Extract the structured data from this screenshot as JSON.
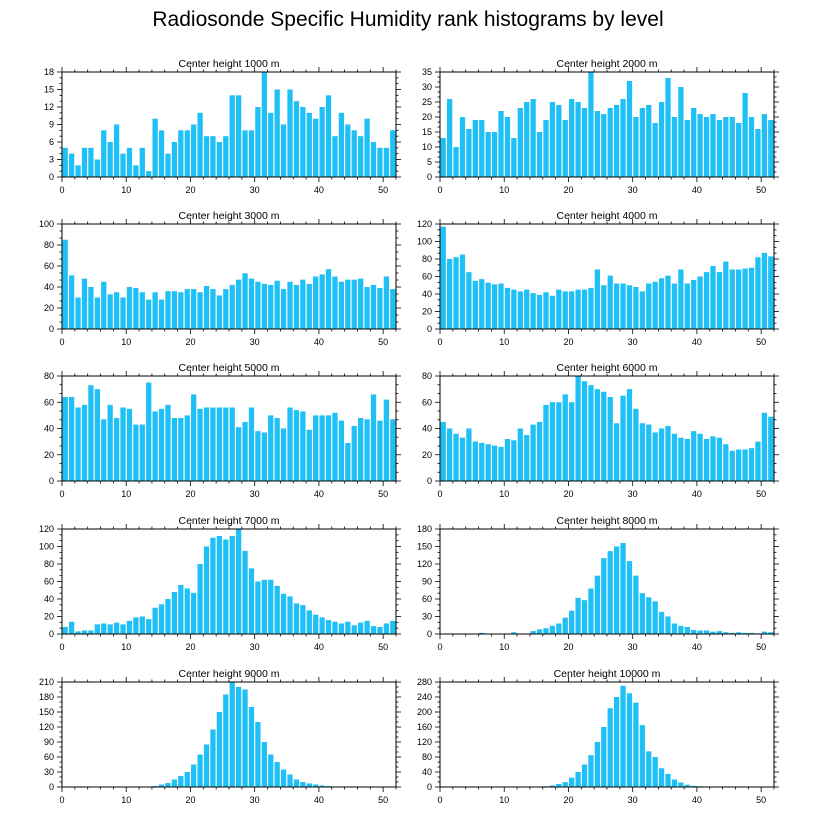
{
  "title": "Radiosonde Specific Humidity rank histograms by level",
  "bar_color": "#1ec0f5",
  "chart_data": [
    {
      "type": "bar",
      "title": "Center height 1000 m",
      "xlim": [
        0,
        52
      ],
      "ylim": [
        0,
        18
      ],
      "xticks": [
        0,
        10,
        20,
        30,
        40,
        50
      ],
      "yticks": [
        0,
        3,
        6,
        9,
        12,
        15,
        18
      ],
      "x": [
        0,
        1,
        2,
        3,
        4,
        5,
        6,
        7,
        8,
        9,
        10,
        11,
        12,
        13,
        14,
        15,
        16,
        17,
        18,
        19,
        20,
        21,
        22,
        23,
        24,
        25,
        26,
        27,
        28,
        29,
        30,
        31,
        32,
        33,
        34,
        35,
        36,
        37,
        38,
        39,
        40,
        41,
        42,
        43,
        44,
        45,
        46,
        47,
        48,
        49,
        50,
        51
      ],
      "values": [
        5,
        4,
        2,
        5,
        5,
        3,
        8,
        6,
        9,
        4,
        5,
        2,
        5,
        1,
        10,
        8,
        4,
        6,
        8,
        8,
        9,
        11,
        7,
        7,
        6,
        7,
        14,
        14,
        8,
        8,
        12,
        18,
        11,
        15,
        9,
        15,
        13,
        12,
        11,
        10,
        12,
        14,
        7,
        11,
        9,
        8,
        7,
        10,
        6,
        5,
        5,
        8
      ]
    },
    {
      "type": "bar",
      "title": "Center height 2000 m",
      "xlim": [
        0,
        52
      ],
      "ylim": [
        0,
        35
      ],
      "xticks": [
        0,
        10,
        20,
        30,
        40,
        50
      ],
      "yticks": [
        0,
        5,
        10,
        15,
        20,
        25,
        30,
        35
      ],
      "x": [
        0,
        1,
        2,
        3,
        4,
        5,
        6,
        7,
        8,
        9,
        10,
        11,
        12,
        13,
        14,
        15,
        16,
        17,
        18,
        19,
        20,
        21,
        22,
        23,
        24,
        25,
        26,
        27,
        28,
        29,
        30,
        31,
        32,
        33,
        34,
        35,
        36,
        37,
        38,
        39,
        40,
        41,
        42,
        43,
        44,
        45,
        46,
        47,
        48,
        49,
        50,
        51
      ],
      "values": [
        13,
        26,
        10,
        20,
        16,
        19,
        19,
        15,
        15,
        22,
        20,
        13,
        23,
        25,
        26,
        15,
        19,
        25,
        24,
        19,
        26,
        25,
        23,
        35,
        22,
        21,
        23,
        24,
        26,
        32,
        20,
        23,
        24,
        18,
        25,
        33,
        20,
        30,
        19,
        23,
        21,
        20,
        21,
        19,
        20,
        20,
        18,
        28,
        20,
        16,
        21,
        19
      ]
    },
    {
      "type": "bar",
      "title": "Center height 3000 m",
      "xlim": [
        0,
        52
      ],
      "ylim": [
        0,
        100
      ],
      "xticks": [
        0,
        10,
        20,
        30,
        40,
        50
      ],
      "yticks": [
        0,
        20,
        40,
        60,
        80,
        100
      ],
      "x": [
        0,
        1,
        2,
        3,
        4,
        5,
        6,
        7,
        8,
        9,
        10,
        11,
        12,
        13,
        14,
        15,
        16,
        17,
        18,
        19,
        20,
        21,
        22,
        23,
        24,
        25,
        26,
        27,
        28,
        29,
        30,
        31,
        32,
        33,
        34,
        35,
        36,
        37,
        38,
        39,
        40,
        41,
        42,
        43,
        44,
        45,
        46,
        47,
        48,
        49,
        50,
        51
      ],
      "values": [
        85,
        51,
        30,
        48,
        40,
        30,
        45,
        33,
        35,
        30,
        40,
        39,
        35,
        28,
        35,
        28,
        36,
        36,
        35,
        38,
        38,
        35,
        41,
        38,
        32,
        38,
        42,
        47,
        53,
        48,
        45,
        43,
        42,
        46,
        38,
        45,
        42,
        47,
        43,
        50,
        52,
        57,
        50,
        45,
        47,
        47,
        48,
        40,
        42,
        39,
        50,
        38
      ]
    },
    {
      "type": "bar",
      "title": "Center height 4000 m",
      "xlim": [
        0,
        52
      ],
      "ylim": [
        0,
        120
      ],
      "xticks": [
        0,
        10,
        20,
        30,
        40,
        50
      ],
      "yticks": [
        0,
        20,
        40,
        60,
        80,
        100,
        120
      ],
      "x": [
        0,
        1,
        2,
        3,
        4,
        5,
        6,
        7,
        8,
        9,
        10,
        11,
        12,
        13,
        14,
        15,
        16,
        17,
        18,
        19,
        20,
        21,
        22,
        23,
        24,
        25,
        26,
        27,
        28,
        29,
        30,
        31,
        32,
        33,
        34,
        35,
        36,
        37,
        38,
        39,
        40,
        41,
        42,
        43,
        44,
        45,
        46,
        47,
        48,
        49,
        50,
        51
      ],
      "values": [
        117,
        80,
        82,
        85,
        65,
        55,
        57,
        53,
        51,
        52,
        47,
        45,
        43,
        45,
        41,
        39,
        42,
        38,
        45,
        43,
        43,
        45,
        45,
        47,
        68,
        50,
        61,
        52,
        52,
        50,
        48,
        43,
        52,
        54,
        58,
        61,
        52,
        68,
        52,
        56,
        60,
        65,
        72,
        65,
        77,
        68,
        68,
        69,
        70,
        82,
        87,
        83
      ]
    },
    {
      "type": "bar",
      "title": "Center height 5000 m",
      "xlim": [
        0,
        52
      ],
      "ylim": [
        0,
        80
      ],
      "xticks": [
        0,
        10,
        20,
        30,
        40,
        50
      ],
      "yticks": [
        0,
        20,
        40,
        60,
        80
      ],
      "x": [
        0,
        1,
        2,
        3,
        4,
        5,
        6,
        7,
        8,
        9,
        10,
        11,
        12,
        13,
        14,
        15,
        16,
        17,
        18,
        19,
        20,
        21,
        22,
        23,
        24,
        25,
        26,
        27,
        28,
        29,
        30,
        31,
        32,
        33,
        34,
        35,
        36,
        37,
        38,
        39,
        40,
        41,
        42,
        43,
        44,
        45,
        46,
        47,
        48,
        49,
        50,
        51
      ],
      "values": [
        64,
        64,
        56,
        58,
        73,
        70,
        47,
        58,
        48,
        56,
        55,
        43,
        43,
        75,
        53,
        55,
        58,
        48,
        48,
        50,
        66,
        55,
        56,
        56,
        56,
        56,
        56,
        41,
        45,
        56,
        38,
        37,
        50,
        48,
        40,
        56,
        54,
        53,
        39,
        50,
        50,
        50,
        52,
        46,
        29,
        42,
        48,
        47,
        66,
        46,
        62,
        47
      ]
    },
    {
      "type": "bar",
      "title": "Center height 6000 m",
      "xlim": [
        0,
        52
      ],
      "ylim": [
        0,
        80
      ],
      "xticks": [
        0,
        10,
        20,
        30,
        40,
        50
      ],
      "yticks": [
        0,
        20,
        40,
        60,
        80
      ],
      "x": [
        0,
        1,
        2,
        3,
        4,
        5,
        6,
        7,
        8,
        9,
        10,
        11,
        12,
        13,
        14,
        15,
        16,
        17,
        18,
        19,
        20,
        21,
        22,
        23,
        24,
        25,
        26,
        27,
        28,
        29,
        30,
        31,
        32,
        33,
        34,
        35,
        36,
        37,
        38,
        39,
        40,
        41,
        42,
        43,
        44,
        45,
        46,
        47,
        48,
        49,
        50,
        51
      ],
      "values": [
        45,
        40,
        36,
        33,
        40,
        30,
        29,
        28,
        27,
        26,
        32,
        31,
        40,
        35,
        43,
        45,
        58,
        60,
        60,
        66,
        60,
        80,
        76,
        73,
        70,
        68,
        64,
        44,
        65,
        70,
        55,
        44,
        43,
        37,
        40,
        42,
        36,
        33,
        32,
        38,
        36,
        32,
        34,
        33,
        28,
        23,
        24,
        24,
        25,
        30,
        52,
        49
      ]
    },
    {
      "type": "bar",
      "title": "Center height 7000 m",
      "xlim": [
        0,
        52
      ],
      "ylim": [
        0,
        120
      ],
      "xticks": [
        0,
        10,
        20,
        30,
        40,
        50
      ],
      "yticks": [
        0,
        20,
        40,
        60,
        80,
        100,
        120
      ],
      "x": [
        0,
        1,
        2,
        3,
        4,
        5,
        6,
        7,
        8,
        9,
        10,
        11,
        12,
        13,
        14,
        15,
        16,
        17,
        18,
        19,
        20,
        21,
        22,
        23,
        24,
        25,
        26,
        27,
        28,
        29,
        30,
        31,
        32,
        33,
        34,
        35,
        36,
        37,
        38,
        39,
        40,
        41,
        42,
        43,
        44,
        45,
        46,
        47,
        48,
        49,
        50,
        51
      ],
      "values": [
        8,
        14,
        3,
        4,
        4,
        11,
        12,
        11,
        13,
        11,
        15,
        19,
        20,
        17,
        30,
        34,
        40,
        48,
        56,
        52,
        47,
        80,
        100,
        110,
        112,
        108,
        112,
        120,
        95,
        75,
        60,
        62,
        62,
        55,
        46,
        43,
        35,
        33,
        27,
        22,
        19,
        16,
        14,
        12,
        14,
        10,
        13,
        15,
        9,
        8,
        12,
        15
      ]
    },
    {
      "type": "bar",
      "title": "Center height 8000 m",
      "xlim": [
        0,
        52
      ],
      "ylim": [
        0,
        180
      ],
      "xticks": [
        0,
        10,
        20,
        30,
        40,
        50
      ],
      "yticks": [
        0,
        30,
        60,
        90,
        120,
        150,
        180
      ],
      "x": [
        0,
        1,
        2,
        3,
        4,
        5,
        6,
        7,
        8,
        9,
        10,
        11,
        12,
        13,
        14,
        15,
        16,
        17,
        18,
        19,
        20,
        21,
        22,
        23,
        24,
        25,
        26,
        27,
        28,
        29,
        30,
        31,
        32,
        33,
        34,
        35,
        36,
        37,
        38,
        39,
        40,
        41,
        42,
        43,
        44,
        45,
        46,
        47,
        48,
        49,
        50,
        51
      ],
      "values": [
        0,
        0,
        0,
        0,
        0,
        0,
        2,
        0,
        0,
        0,
        0,
        3,
        0,
        0,
        5,
        8,
        10,
        14,
        18,
        28,
        40,
        62,
        58,
        78,
        100,
        130,
        142,
        150,
        156,
        125,
        100,
        70,
        63,
        56,
        38,
        30,
        18,
        14,
        12,
        7,
        6,
        6,
        4,
        5,
        3,
        2,
        3,
        2,
        2,
        1,
        4,
        3
      ]
    },
    {
      "type": "bar",
      "title": "Center height 9000 m",
      "xlim": [
        0,
        52
      ],
      "ylim": [
        0,
        210
      ],
      "xticks": [
        0,
        10,
        20,
        30,
        40,
        50
      ],
      "yticks": [
        0,
        30,
        60,
        90,
        120,
        150,
        180,
        210
      ],
      "x": [
        0,
        1,
        2,
        3,
        4,
        5,
        6,
        7,
        8,
        9,
        10,
        11,
        12,
        13,
        14,
        15,
        16,
        17,
        18,
        19,
        20,
        21,
        22,
        23,
        24,
        25,
        26,
        27,
        28,
        29,
        30,
        31,
        32,
        33,
        34,
        35,
        36,
        37,
        38,
        39,
        40,
        41,
        42,
        43,
        44,
        45,
        46,
        47,
        48,
        49,
        50,
        51
      ],
      "values": [
        0,
        0,
        0,
        0,
        0,
        0,
        0,
        0,
        0,
        0,
        0,
        0,
        0,
        1,
        2,
        5,
        8,
        15,
        22,
        30,
        45,
        65,
        85,
        115,
        150,
        185,
        210,
        200,
        195,
        160,
        130,
        90,
        65,
        50,
        35,
        25,
        15,
        10,
        7,
        5,
        3,
        2,
        1,
        1,
        1,
        0,
        0,
        0,
        0,
        0,
        0,
        0
      ]
    },
    {
      "type": "bar",
      "title": "Center height 10000 m",
      "xlim": [
        0,
        52
      ],
      "ylim": [
        0,
        280
      ],
      "xticks": [
        0,
        10,
        20,
        30,
        40,
        50
      ],
      "yticks": [
        0,
        40,
        80,
        120,
        160,
        200,
        240,
        280
      ],
      "x": [
        0,
        1,
        2,
        3,
        4,
        5,
        6,
        7,
        8,
        9,
        10,
        11,
        12,
        13,
        14,
        15,
        16,
        17,
        18,
        19,
        20,
        21,
        22,
        23,
        24,
        25,
        26,
        27,
        28,
        29,
        30,
        31,
        32,
        33,
        34,
        35,
        36,
        37,
        38,
        39,
        40,
        41,
        42,
        43,
        44,
        45,
        46,
        47,
        48,
        49,
        50,
        51
      ],
      "values": [
        0,
        0,
        0,
        0,
        0,
        0,
        0,
        0,
        0,
        0,
        0,
        0,
        0,
        0,
        0,
        1,
        2,
        4,
        8,
        13,
        25,
        40,
        60,
        85,
        120,
        160,
        210,
        240,
        270,
        250,
        225,
        165,
        95,
        80,
        50,
        35,
        20,
        12,
        6,
        3,
        2,
        1,
        1,
        0,
        0,
        0,
        0,
        0,
        0,
        0,
        0,
        0
      ]
    }
  ]
}
